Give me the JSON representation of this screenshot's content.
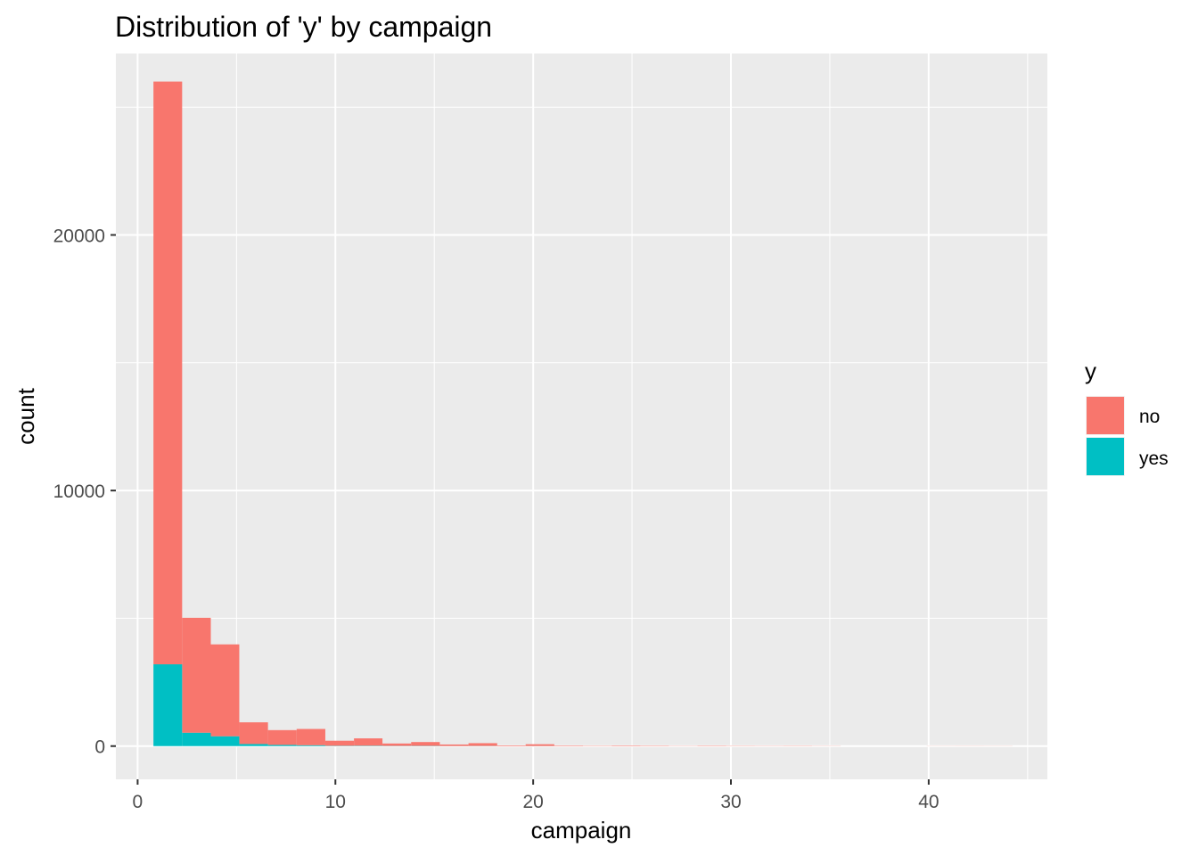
{
  "chart_data": {
    "type": "bar",
    "subtype": "stacked-histogram",
    "title": "Distribution of 'y' by campaign",
    "xlabel": "campaign",
    "ylabel": "count",
    "xlim": [
      -1.1,
      46.0
    ],
    "ylim": [
      -1300,
      27100
    ],
    "x_ticks": [
      0,
      10,
      20,
      30,
      40
    ],
    "x_tick_labels": [
      "0",
      "10",
      "20",
      "30",
      "40"
    ],
    "y_ticks": [
      0,
      10000,
      20000
    ],
    "y_tick_labels": [
      "0",
      "10000",
      "20000"
    ],
    "grid": true,
    "legend": {
      "title": "y",
      "position": "right"
    },
    "bin_width": 1.448,
    "bins": [
      {
        "x0": 0.8,
        "x1": 2.25
      },
      {
        "x0": 2.25,
        "x1": 3.7
      },
      {
        "x0": 3.7,
        "x1": 5.14
      },
      {
        "x0": 5.14,
        "x1": 6.59
      },
      {
        "x0": 6.59,
        "x1": 8.04
      },
      {
        "x0": 8.04,
        "x1": 9.49
      },
      {
        "x0": 9.49,
        "x1": 10.94
      },
      {
        "x0": 10.94,
        "x1": 12.38
      },
      {
        "x0": 12.38,
        "x1": 13.83
      },
      {
        "x0": 13.83,
        "x1": 15.28
      },
      {
        "x0": 15.28,
        "x1": 16.73
      },
      {
        "x0": 16.73,
        "x1": 18.18
      },
      {
        "x0": 18.18,
        "x1": 19.62
      },
      {
        "x0": 19.62,
        "x1": 21.07
      },
      {
        "x0": 21.07,
        "x1": 22.52
      },
      {
        "x0": 22.52,
        "x1": 23.97
      },
      {
        "x0": 23.97,
        "x1": 25.42
      },
      {
        "x0": 25.42,
        "x1": 26.86
      },
      {
        "x0": 26.86,
        "x1": 28.31
      },
      {
        "x0": 28.31,
        "x1": 29.76
      },
      {
        "x0": 29.76,
        "x1": 31.21
      },
      {
        "x0": 31.21,
        "x1": 32.66
      },
      {
        "x0": 32.66,
        "x1": 34.1
      },
      {
        "x0": 34.1,
        "x1": 35.55
      },
      {
        "x0": 35.55,
        "x1": 37.0
      },
      {
        "x0": 37.0,
        "x1": 38.45
      },
      {
        "x0": 38.45,
        "x1": 39.9
      },
      {
        "x0": 39.9,
        "x1": 41.34
      },
      {
        "x0": 41.34,
        "x1": 42.79
      },
      {
        "x0": 42.79,
        "x1": 44.24
      }
    ],
    "series": [
      {
        "name": "no",
        "color": "#F8766D",
        "values": [
          22800,
          4500,
          3600,
          850,
          580,
          640,
          200,
          290,
          95,
          150,
          60,
          110,
          25,
          70,
          20,
          12,
          20,
          15,
          8,
          15,
          10,
          8,
          10,
          6,
          0,
          0,
          0,
          4,
          5,
          4
        ]
      },
      {
        "name": "yes",
        "color": "#00BFC4",
        "values": [
          3200,
          520,
          380,
          80,
          45,
          30,
          10,
          12,
          6,
          8,
          2,
          4,
          0,
          2,
          0,
          0,
          0,
          0,
          0,
          0,
          0,
          0,
          0,
          0,
          0,
          0,
          0,
          0,
          0,
          0
        ]
      }
    ]
  }
}
